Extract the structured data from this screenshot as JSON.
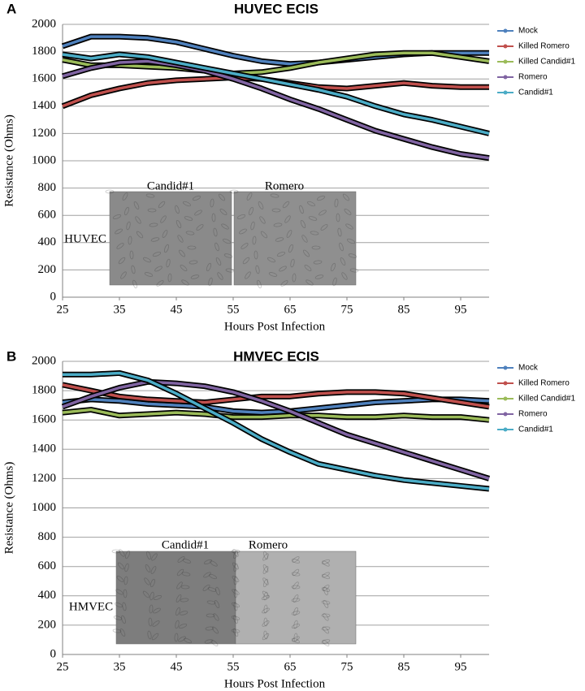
{
  "chart_data": [
    {
      "type": "line",
      "panel": "A",
      "title": "HUVEC ECIS",
      "x_label": "Hours Post Infection",
      "y_label": "Resistance (Ohms)",
      "x": [
        25,
        30,
        35,
        40,
        45,
        50,
        55,
        60,
        65,
        70,
        75,
        80,
        85,
        90,
        95,
        100
      ],
      "series": [
        {
          "name": "Mock",
          "color": "#4f81bd",
          "values": [
            1840,
            1910,
            1910,
            1900,
            1870,
            1820,
            1770,
            1730,
            1710,
            1720,
            1740,
            1760,
            1780,
            1790,
            1790,
            1790
          ]
        },
        {
          "name": "Killed Romero",
          "color": "#c0504d",
          "values": [
            1400,
            1480,
            1530,
            1570,
            1590,
            1600,
            1610,
            1600,
            1570,
            1540,
            1530,
            1550,
            1570,
            1550,
            1540,
            1540
          ]
        },
        {
          "name": "Killed Candid#1",
          "color": "#9bbb59",
          "values": [
            1740,
            1700,
            1700,
            1690,
            1680,
            1660,
            1640,
            1650,
            1680,
            1720,
            1750,
            1780,
            1790,
            1790,
            1760,
            1730
          ]
        },
        {
          "name": "Romero",
          "color": "#8064a2",
          "values": [
            1620,
            1680,
            1720,
            1730,
            1700,
            1660,
            1600,
            1530,
            1450,
            1380,
            1300,
            1220,
            1160,
            1100,
            1050,
            1020
          ]
        },
        {
          "name": "Candid#1",
          "color": "#4bacc6",
          "values": [
            1780,
            1750,
            1780,
            1760,
            1720,
            1680,
            1640,
            1600,
            1560,
            1520,
            1470,
            1400,
            1340,
            1300,
            1250,
            1200
          ]
        }
      ],
      "xlim": [
        25,
        100
      ],
      "xticks": [
        25,
        35,
        45,
        55,
        65,
        75,
        85,
        95
      ],
      "ylim": [
        0,
        2000
      ],
      "yticks": [
        0,
        200,
        400,
        600,
        800,
        1000,
        1200,
        1400,
        1600,
        1800,
        2000
      ],
      "grid": true,
      "legend": "right",
      "inset": {
        "labels": [
          "Candid#1",
          "Romero"
        ],
        "cell_type": "HUVEC"
      }
    },
    {
      "type": "line",
      "panel": "B",
      "title": "HMVEC ECIS",
      "x_label": "Hours Post Infection",
      "y_label": "Resistance (Ohms)",
      "x": [
        25,
        30,
        35,
        40,
        45,
        50,
        55,
        60,
        65,
        70,
        75,
        80,
        85,
        90,
        95,
        100
      ],
      "series": [
        {
          "name": "Mock",
          "color": "#4f81bd",
          "values": [
            1720,
            1740,
            1730,
            1710,
            1700,
            1690,
            1660,
            1650,
            1660,
            1680,
            1700,
            1720,
            1730,
            1740,
            1740,
            1730
          ]
        },
        {
          "name": "Killed Romero",
          "color": "#c0504d",
          "values": [
            1840,
            1800,
            1760,
            1740,
            1730,
            1720,
            1740,
            1760,
            1760,
            1780,
            1790,
            1790,
            1780,
            1750,
            1720,
            1690
          ]
        },
        {
          "name": "Killed Candid#1",
          "color": "#9bbb59",
          "values": [
            1650,
            1670,
            1630,
            1640,
            1650,
            1640,
            1620,
            1620,
            1630,
            1630,
            1620,
            1620,
            1630,
            1620,
            1620,
            1600
          ]
        },
        {
          "name": "Romero",
          "color": "#8064a2",
          "values": [
            1690,
            1760,
            1820,
            1860,
            1850,
            1830,
            1790,
            1730,
            1660,
            1580,
            1500,
            1440,
            1380,
            1320,
            1260,
            1200
          ]
        },
        {
          "name": "Candid#1",
          "color": "#4bacc6",
          "values": [
            1910,
            1910,
            1920,
            1870,
            1780,
            1680,
            1580,
            1470,
            1380,
            1300,
            1260,
            1220,
            1190,
            1170,
            1150,
            1130
          ]
        }
      ],
      "xlim": [
        25,
        100
      ],
      "xticks": [
        25,
        35,
        45,
        55,
        65,
        75,
        85,
        95
      ],
      "ylim": [
        0,
        2000
      ],
      "yticks": [
        0,
        200,
        400,
        600,
        800,
        1000,
        1200,
        1400,
        1600,
        1800,
        2000
      ],
      "grid": true,
      "legend": "right",
      "inset": {
        "labels": [
          "Candid#1",
          "Romero"
        ],
        "cell_type": "HMVEC"
      }
    }
  ]
}
